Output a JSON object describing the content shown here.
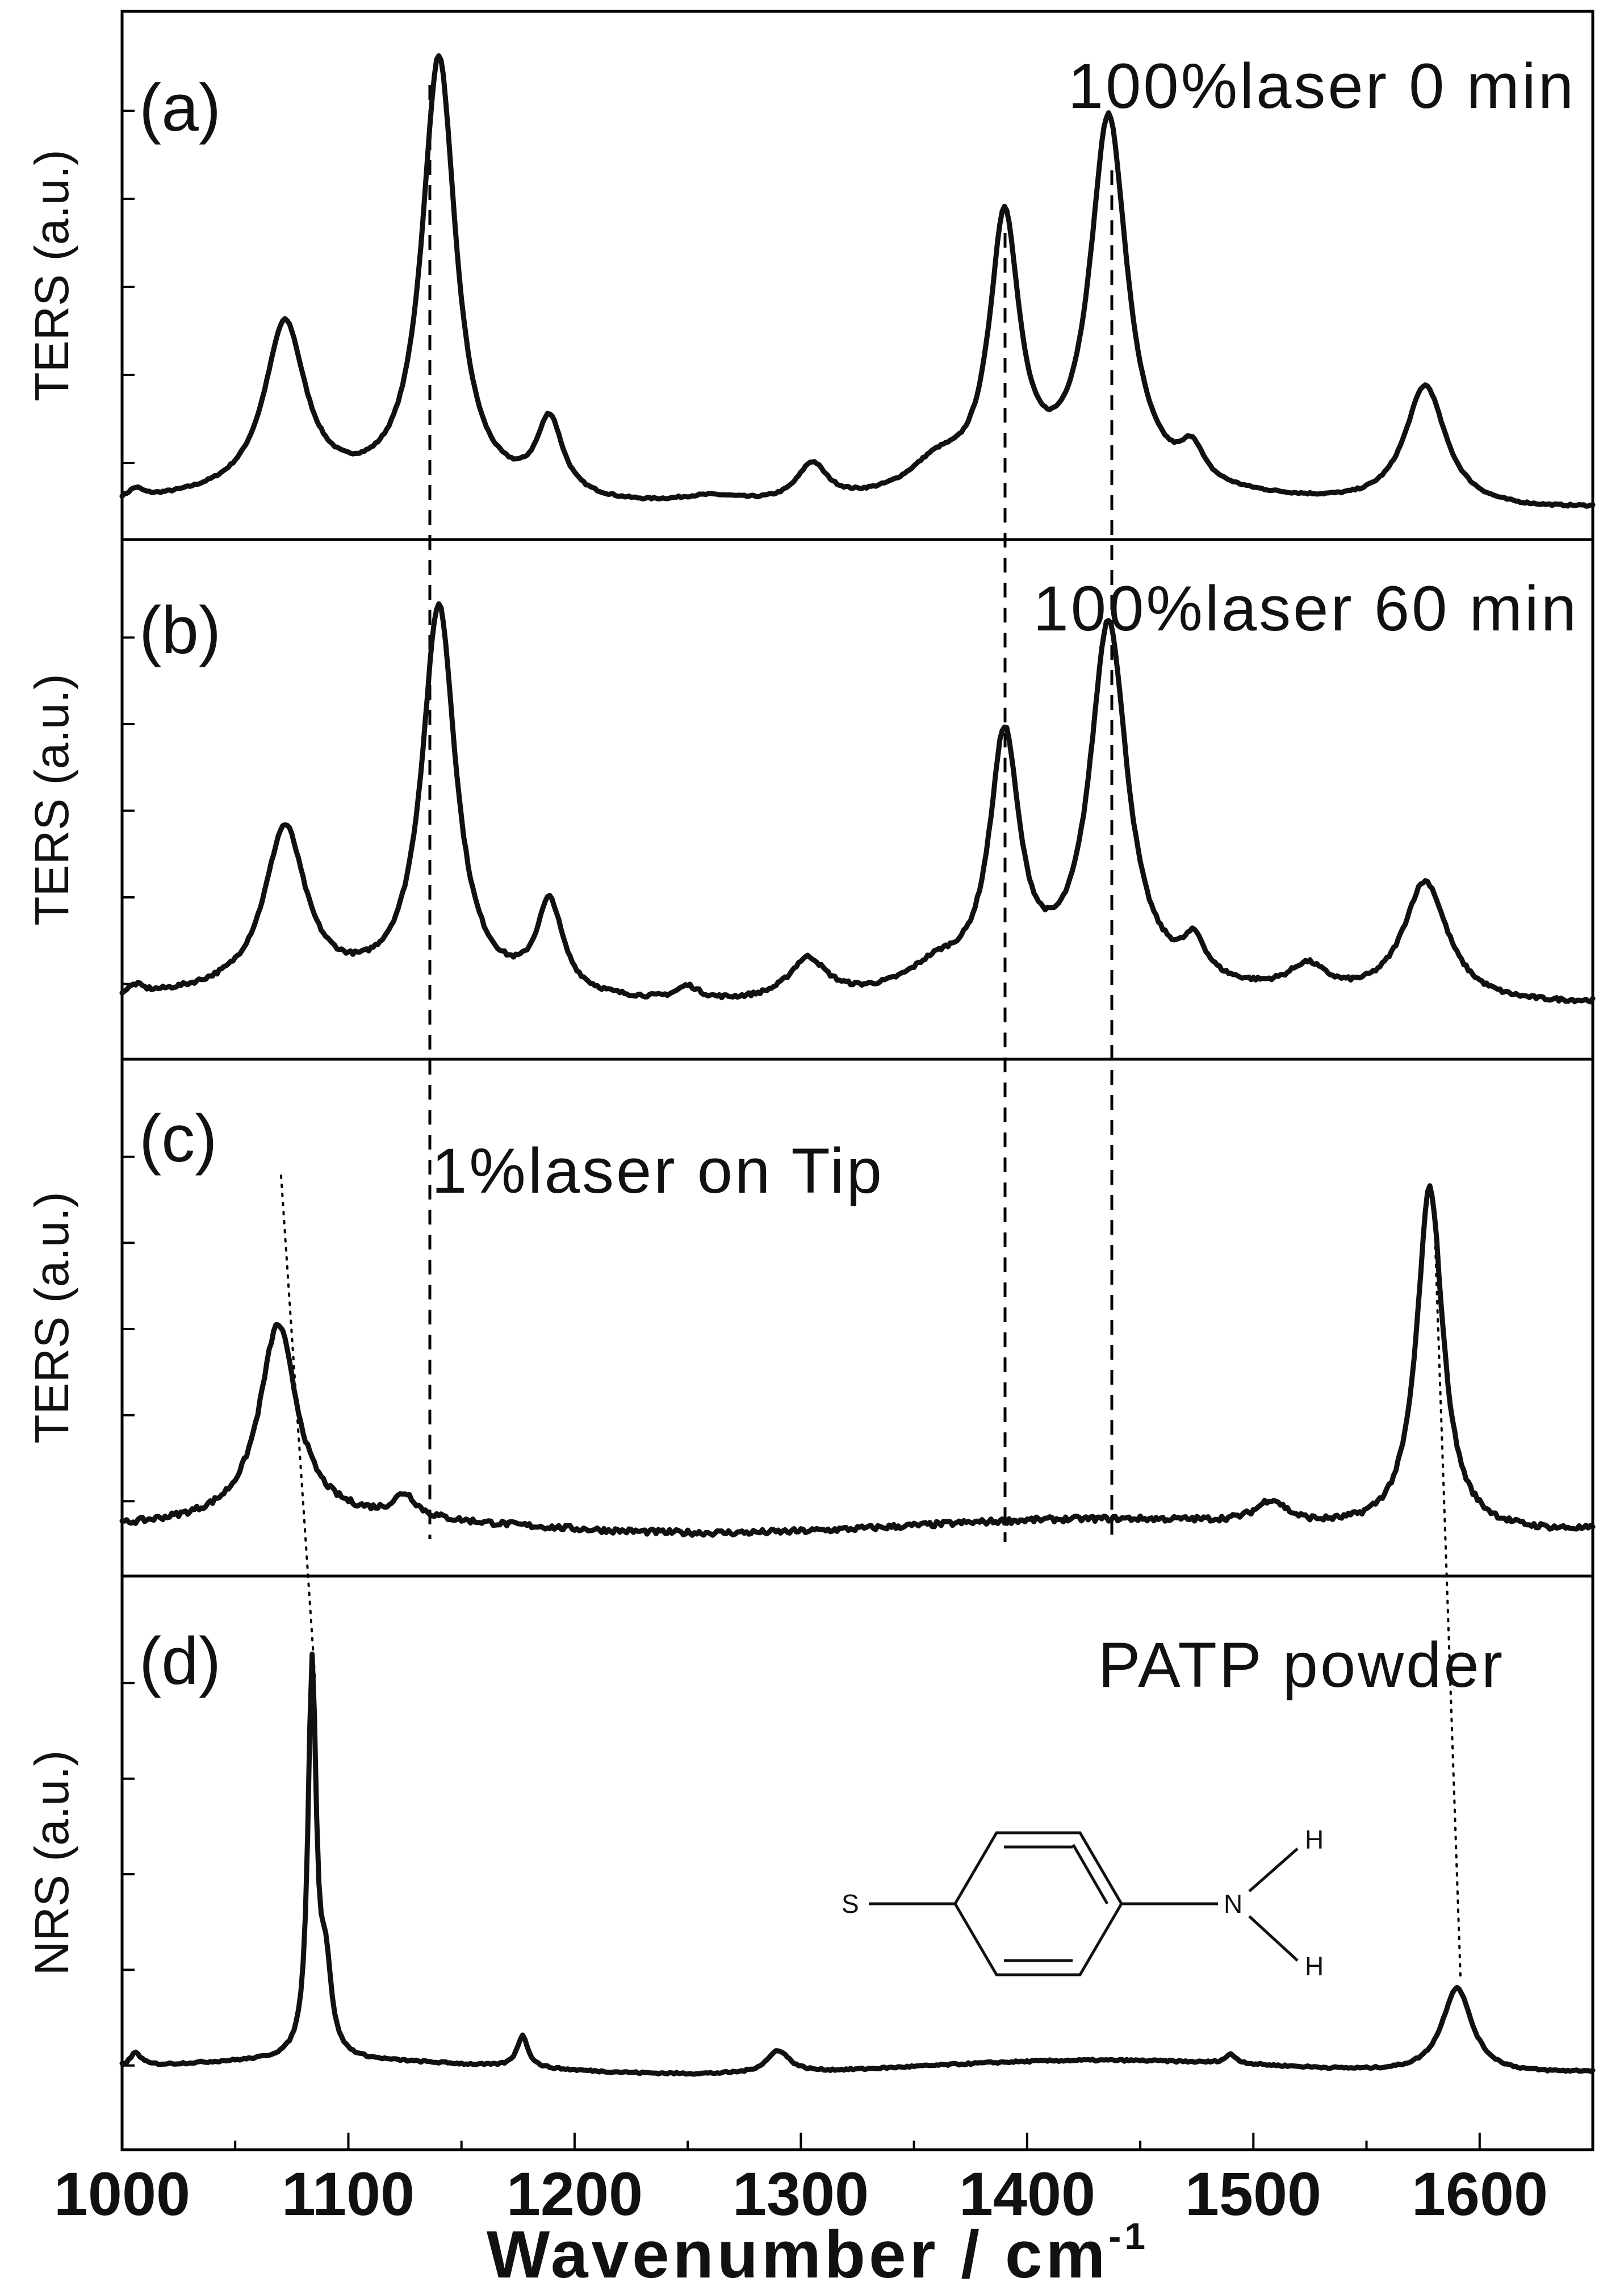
{
  "chart_data": {
    "type": "line",
    "xlabel": "Wavenumber / cm",
    "xlabel_superscript": "-1",
    "xlim": [
      1000,
      1650
    ],
    "x_ticks": [
      "1000",
      "1100",
      "1200",
      "1300",
      "1400",
      "1500",
      "1600"
    ],
    "dashed_guides_at": [
      1136,
      1390,
      1437
    ],
    "panels": [
      {
        "label": "(a)",
        "annotation": "100%laser 0 min",
        "ylabel": "TERS (a.u.)",
        "baseline": 0.02,
        "peaks": [
          {
            "center": 1072,
            "height": 0.36,
            "width": 11
          },
          {
            "center": 1140,
            "height": 0.93,
            "width": 9
          },
          {
            "center": 1189,
            "height": 0.16,
            "width": 7
          },
          {
            "center": 1260,
            "height": 0.02,
            "width": 20
          },
          {
            "center": 1305,
            "height": 0.08,
            "width": 8
          },
          {
            "center": 1360,
            "height": 0.06,
            "width": 15
          },
          {
            "center": 1390,
            "height": 0.57,
            "width": 8
          },
          {
            "center": 1436,
            "height": 0.79,
            "width": 10
          },
          {
            "center": 1473,
            "height": 0.07,
            "width": 6
          },
          {
            "center": 1576,
            "height": 0.26,
            "width": 11
          },
          {
            "center": 1006,
            "height": 0.02,
            "width": 4
          }
        ]
      },
      {
        "label": "(b)",
        "annotation": "100%laser 60 min",
        "ylabel": "TERS (a.u.)",
        "baseline": 0.1,
        "peaks": [
          {
            "center": 1072,
            "height": 0.36,
            "width": 11
          },
          {
            "center": 1140,
            "height": 0.86,
            "width": 9
          },
          {
            "center": 1189,
            "height": 0.2,
            "width": 7
          },
          {
            "center": 1250,
            "height": 0.03,
            "width": 6
          },
          {
            "center": 1303,
            "height": 0.09,
            "width": 10
          },
          {
            "center": 1360,
            "height": 0.05,
            "width": 15
          },
          {
            "center": 1390,
            "height": 0.55,
            "width": 8
          },
          {
            "center": 1436,
            "height": 0.81,
            "width": 10
          },
          {
            "center": 1474,
            "height": 0.08,
            "width": 6
          },
          {
            "center": 1524,
            "height": 0.06,
            "width": 10
          },
          {
            "center": 1576,
            "height": 0.27,
            "width": 12
          },
          {
            "center": 1006,
            "height": 0.02,
            "width": 4
          }
        ]
      },
      {
        "label": "(c)",
        "annotation": "1%laser on Tip",
        "ylabel": "TERS (a.u.)",
        "baseline": 0.04,
        "peaks": [
          {
            "center": 1069,
            "height": 0.43,
            "width": 10
          },
          {
            "center": 1125,
            "height": 0.05,
            "width": 6
          },
          {
            "center": 1508,
            "height": 0.05,
            "width": 8
          },
          {
            "center": 1578,
            "height": 0.76,
            "width": 7
          }
        ]
      },
      {
        "label": "(d)",
        "annotation": "PATP powder",
        "ylabel": "NRS (a.u.)",
        "baseline": 0.0,
        "peaks": [
          {
            "center": 1084,
            "height": 0.86,
            "width": 2.2
          },
          {
            "center": 1090,
            "height": 0.18,
            "width": 3
          },
          {
            "center": 1177,
            "height": 0.07,
            "width": 3
          },
          {
            "center": 1290,
            "height": 0.05,
            "width": 6
          },
          {
            "center": 1490,
            "height": 0.02,
            "width": 3
          },
          {
            "center": 1590,
            "height": 0.19,
            "width": 8
          },
          {
            "center": 1006,
            "height": 0.03,
            "width": 3
          }
        ]
      }
    ],
    "molecule": {
      "name": "PATP",
      "atoms": {
        "s": "S",
        "n": "N",
        "h1": "H",
        "h2": "H"
      }
    }
  }
}
